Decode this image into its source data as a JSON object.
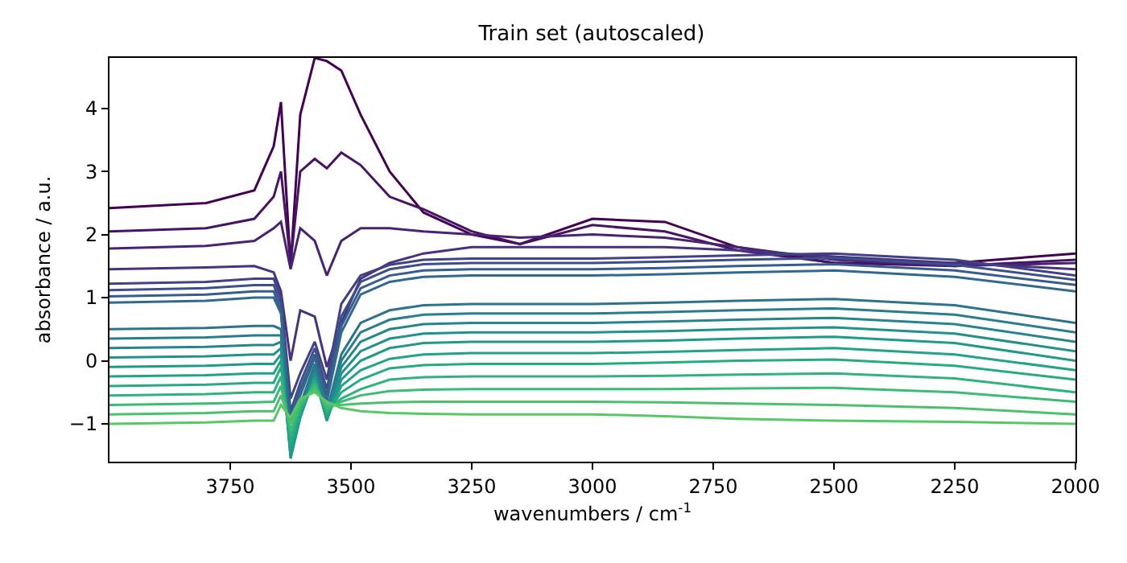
{
  "chart_data": {
    "type": "line",
    "title": "Train set (autoscaled)",
    "xlabel": "wavenumbers / cm$^{-1}$",
    "ylabel": "absorbance / a.u.",
    "x": [
      4000,
      3800,
      3700,
      3660,
      3645,
      3625,
      3605,
      3575,
      3550,
      3520,
      3480,
      3420,
      3350,
      3250,
      3150,
      3000,
      2850,
      2700,
      2500,
      2250,
      2000
    ],
    "xlim": [
      4000,
      2000
    ],
    "xticks": [
      3750,
      3500,
      3250,
      3000,
      2750,
      2500,
      2250,
      2000
    ],
    "ylim": [
      -1.6,
      4.8
    ],
    "yticks": [
      -1,
      0,
      1,
      2,
      3,
      4
    ],
    "marker": "none",
    "line_style": "solid",
    "series": [
      {
        "color": "#440154",
        "values": [
          2.42,
          2.5,
          2.7,
          3.4,
          4.1,
          1.5,
          3.9,
          4.8,
          4.75,
          4.6,
          3.9,
          3.0,
          2.35,
          2.0,
          1.85,
          2.25,
          2.2,
          1.8,
          1.55,
          1.55,
          1.7
        ]
      },
      {
        "color": "#471365",
        "values": [
          2.05,
          2.1,
          2.25,
          2.6,
          3.0,
          1.55,
          3.0,
          3.2,
          3.05,
          3.3,
          3.1,
          2.6,
          2.4,
          2.05,
          1.85,
          2.15,
          2.05,
          1.75,
          1.55,
          1.5,
          1.6
        ]
      },
      {
        "color": "#482374",
        "values": [
          1.78,
          1.82,
          1.9,
          2.1,
          2.2,
          1.45,
          2.1,
          1.9,
          1.35,
          1.9,
          2.1,
          2.1,
          2.05,
          2.0,
          1.95,
          2.0,
          1.95,
          1.8,
          1.6,
          1.5,
          1.55
        ]
      },
      {
        "color": "#46327e",
        "values": [
          1.45,
          1.48,
          1.5,
          1.4,
          1.1,
          0.0,
          0.8,
          0.7,
          -0.1,
          0.6,
          1.3,
          1.55,
          1.7,
          1.8,
          1.8,
          1.8,
          1.8,
          1.75,
          1.65,
          1.55,
          1.45
        ]
      },
      {
        "color": "#424086",
        "values": [
          1.22,
          1.25,
          1.3,
          1.3,
          1.0,
          -0.6,
          -0.2,
          0.3,
          -0.3,
          0.9,
          1.35,
          1.52,
          1.6,
          1.62,
          1.62,
          1.62,
          1.64,
          1.67,
          1.7,
          1.6,
          1.35
        ]
      },
      {
        "color": "#3c4f8a",
        "values": [
          1.12,
          1.15,
          1.2,
          1.2,
          0.9,
          -0.8,
          -0.35,
          0.2,
          -0.45,
          0.7,
          1.25,
          1.45,
          1.53,
          1.55,
          1.55,
          1.55,
          1.57,
          1.6,
          1.63,
          1.52,
          1.28
        ]
      },
      {
        "color": "#365c8d",
        "values": [
          1.02,
          1.05,
          1.1,
          1.1,
          0.8,
          -0.9,
          -0.45,
          0.1,
          -0.55,
          0.55,
          1.15,
          1.35,
          1.43,
          1.45,
          1.45,
          1.45,
          1.47,
          1.5,
          1.53,
          1.43,
          1.2
        ]
      },
      {
        "color": "#31688e",
        "values": [
          0.92,
          0.95,
          1.0,
          1.0,
          0.75,
          -1.0,
          -0.55,
          0.05,
          -0.65,
          0.45,
          1.05,
          1.25,
          1.33,
          1.35,
          1.35,
          1.35,
          1.37,
          1.4,
          1.43,
          1.33,
          1.1
        ]
      },
      {
        "color": "#2c738e",
        "values": [
          0.5,
          0.52,
          0.55,
          0.55,
          0.5,
          -1.3,
          -0.7,
          -0.05,
          -0.8,
          0.1,
          0.6,
          0.8,
          0.88,
          0.9,
          0.9,
          0.9,
          0.92,
          0.95,
          0.98,
          0.88,
          0.6
        ]
      },
      {
        "color": "#287d8e",
        "values": [
          0.35,
          0.37,
          0.4,
          0.4,
          0.4,
          -1.4,
          -0.8,
          -0.1,
          -0.85,
          0.0,
          0.45,
          0.65,
          0.73,
          0.75,
          0.75,
          0.75,
          0.77,
          0.8,
          0.83,
          0.73,
          0.45
        ]
      },
      {
        "color": "#25858e",
        "values": [
          0.2,
          0.22,
          0.25,
          0.25,
          0.3,
          -1.5,
          -0.85,
          -0.15,
          -0.9,
          -0.1,
          0.3,
          0.5,
          0.58,
          0.6,
          0.6,
          0.6,
          0.62,
          0.65,
          0.68,
          0.58,
          0.3
        ]
      },
      {
        "color": "#21918c",
        "values": [
          0.05,
          0.07,
          0.1,
          0.1,
          0.2,
          -1.55,
          -0.9,
          -0.2,
          -0.95,
          -0.2,
          0.15,
          0.35,
          0.43,
          0.45,
          0.45,
          0.45,
          0.47,
          0.5,
          0.53,
          0.43,
          0.15
        ]
      },
      {
        "color": "#1f9a8a",
        "values": [
          -0.1,
          -0.08,
          -0.05,
          -0.05,
          0.1,
          -1.5,
          -0.9,
          -0.25,
          -0.95,
          -0.3,
          0.0,
          0.2,
          0.28,
          0.3,
          0.3,
          0.3,
          0.32,
          0.35,
          0.38,
          0.28,
          0.0
        ]
      },
      {
        "color": "#20a386",
        "values": [
          -0.25,
          -0.23,
          -0.2,
          -0.2,
          0.0,
          -1.4,
          -0.85,
          -0.3,
          -0.9,
          -0.4,
          -0.15,
          0.03,
          0.1,
          0.12,
          0.12,
          0.12,
          0.14,
          0.17,
          0.2,
          0.1,
          -0.15
        ]
      },
      {
        "color": "#25ab82",
        "values": [
          -0.4,
          -0.38,
          -0.35,
          -0.35,
          -0.1,
          -1.3,
          -0.8,
          -0.3,
          -0.85,
          -0.5,
          -0.3,
          -0.12,
          -0.07,
          -0.05,
          -0.05,
          -0.05,
          -0.03,
          0.0,
          0.02,
          -0.08,
          -0.3
        ]
      },
      {
        "color": "#2eb37c",
        "values": [
          -0.55,
          -0.53,
          -0.5,
          -0.5,
          -0.25,
          -1.2,
          -0.75,
          -0.35,
          -0.8,
          -0.6,
          -0.45,
          -0.3,
          -0.26,
          -0.25,
          -0.25,
          -0.25,
          -0.24,
          -0.22,
          -0.2,
          -0.28,
          -0.5
        ]
      },
      {
        "color": "#3bbb75",
        "values": [
          -0.7,
          -0.68,
          -0.66,
          -0.65,
          -0.4,
          -1.1,
          -0.7,
          -0.4,
          -0.75,
          -0.65,
          -0.55,
          -0.48,
          -0.46,
          -0.45,
          -0.45,
          -0.45,
          -0.45,
          -0.44,
          -0.43,
          -0.5,
          -0.65
        ]
      },
      {
        "color": "#4ac16d",
        "values": [
          -0.85,
          -0.83,
          -0.8,
          -0.8,
          -0.55,
          -1.0,
          -0.65,
          -0.45,
          -0.7,
          -0.7,
          -0.68,
          -0.66,
          -0.65,
          -0.65,
          -0.65,
          -0.65,
          -0.66,
          -0.68,
          -0.7,
          -0.75,
          -0.85
        ]
      },
      {
        "color": "#58c765",
        "values": [
          -1.0,
          -0.98,
          -0.95,
          -0.95,
          -0.7,
          -0.9,
          -0.6,
          -0.5,
          -0.65,
          -0.75,
          -0.8,
          -0.83,
          -0.84,
          -0.85,
          -0.85,
          -0.85,
          -0.88,
          -0.92,
          -0.95,
          -0.97,
          -1.0
        ]
      }
    ]
  }
}
